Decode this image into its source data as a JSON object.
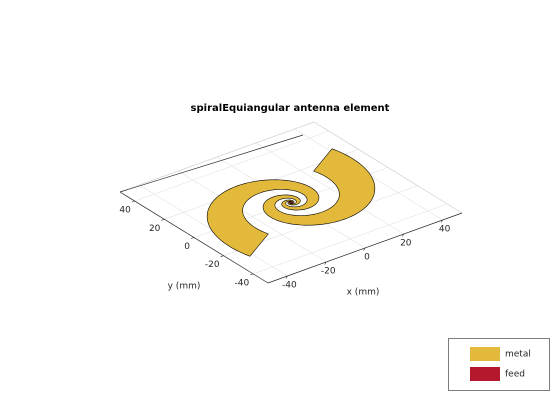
{
  "chart_data": {
    "type": "antenna",
    "title": "spiralEquiangular antenna element",
    "xlabel": "x (mm)",
    "ylabel": "y (mm)",
    "xlim": [
      -50,
      50
    ],
    "ylim": [
      -50,
      50
    ],
    "xticks": [
      -40,
      -20,
      0,
      20,
      40
    ],
    "yticks": [
      -40,
      -20,
      0,
      20,
      40
    ],
    "grid": true,
    "series": [
      {
        "name": "metal",
        "color": "#e3b93c"
      },
      {
        "name": "feed",
        "color": "#b5172d"
      }
    ]
  }
}
